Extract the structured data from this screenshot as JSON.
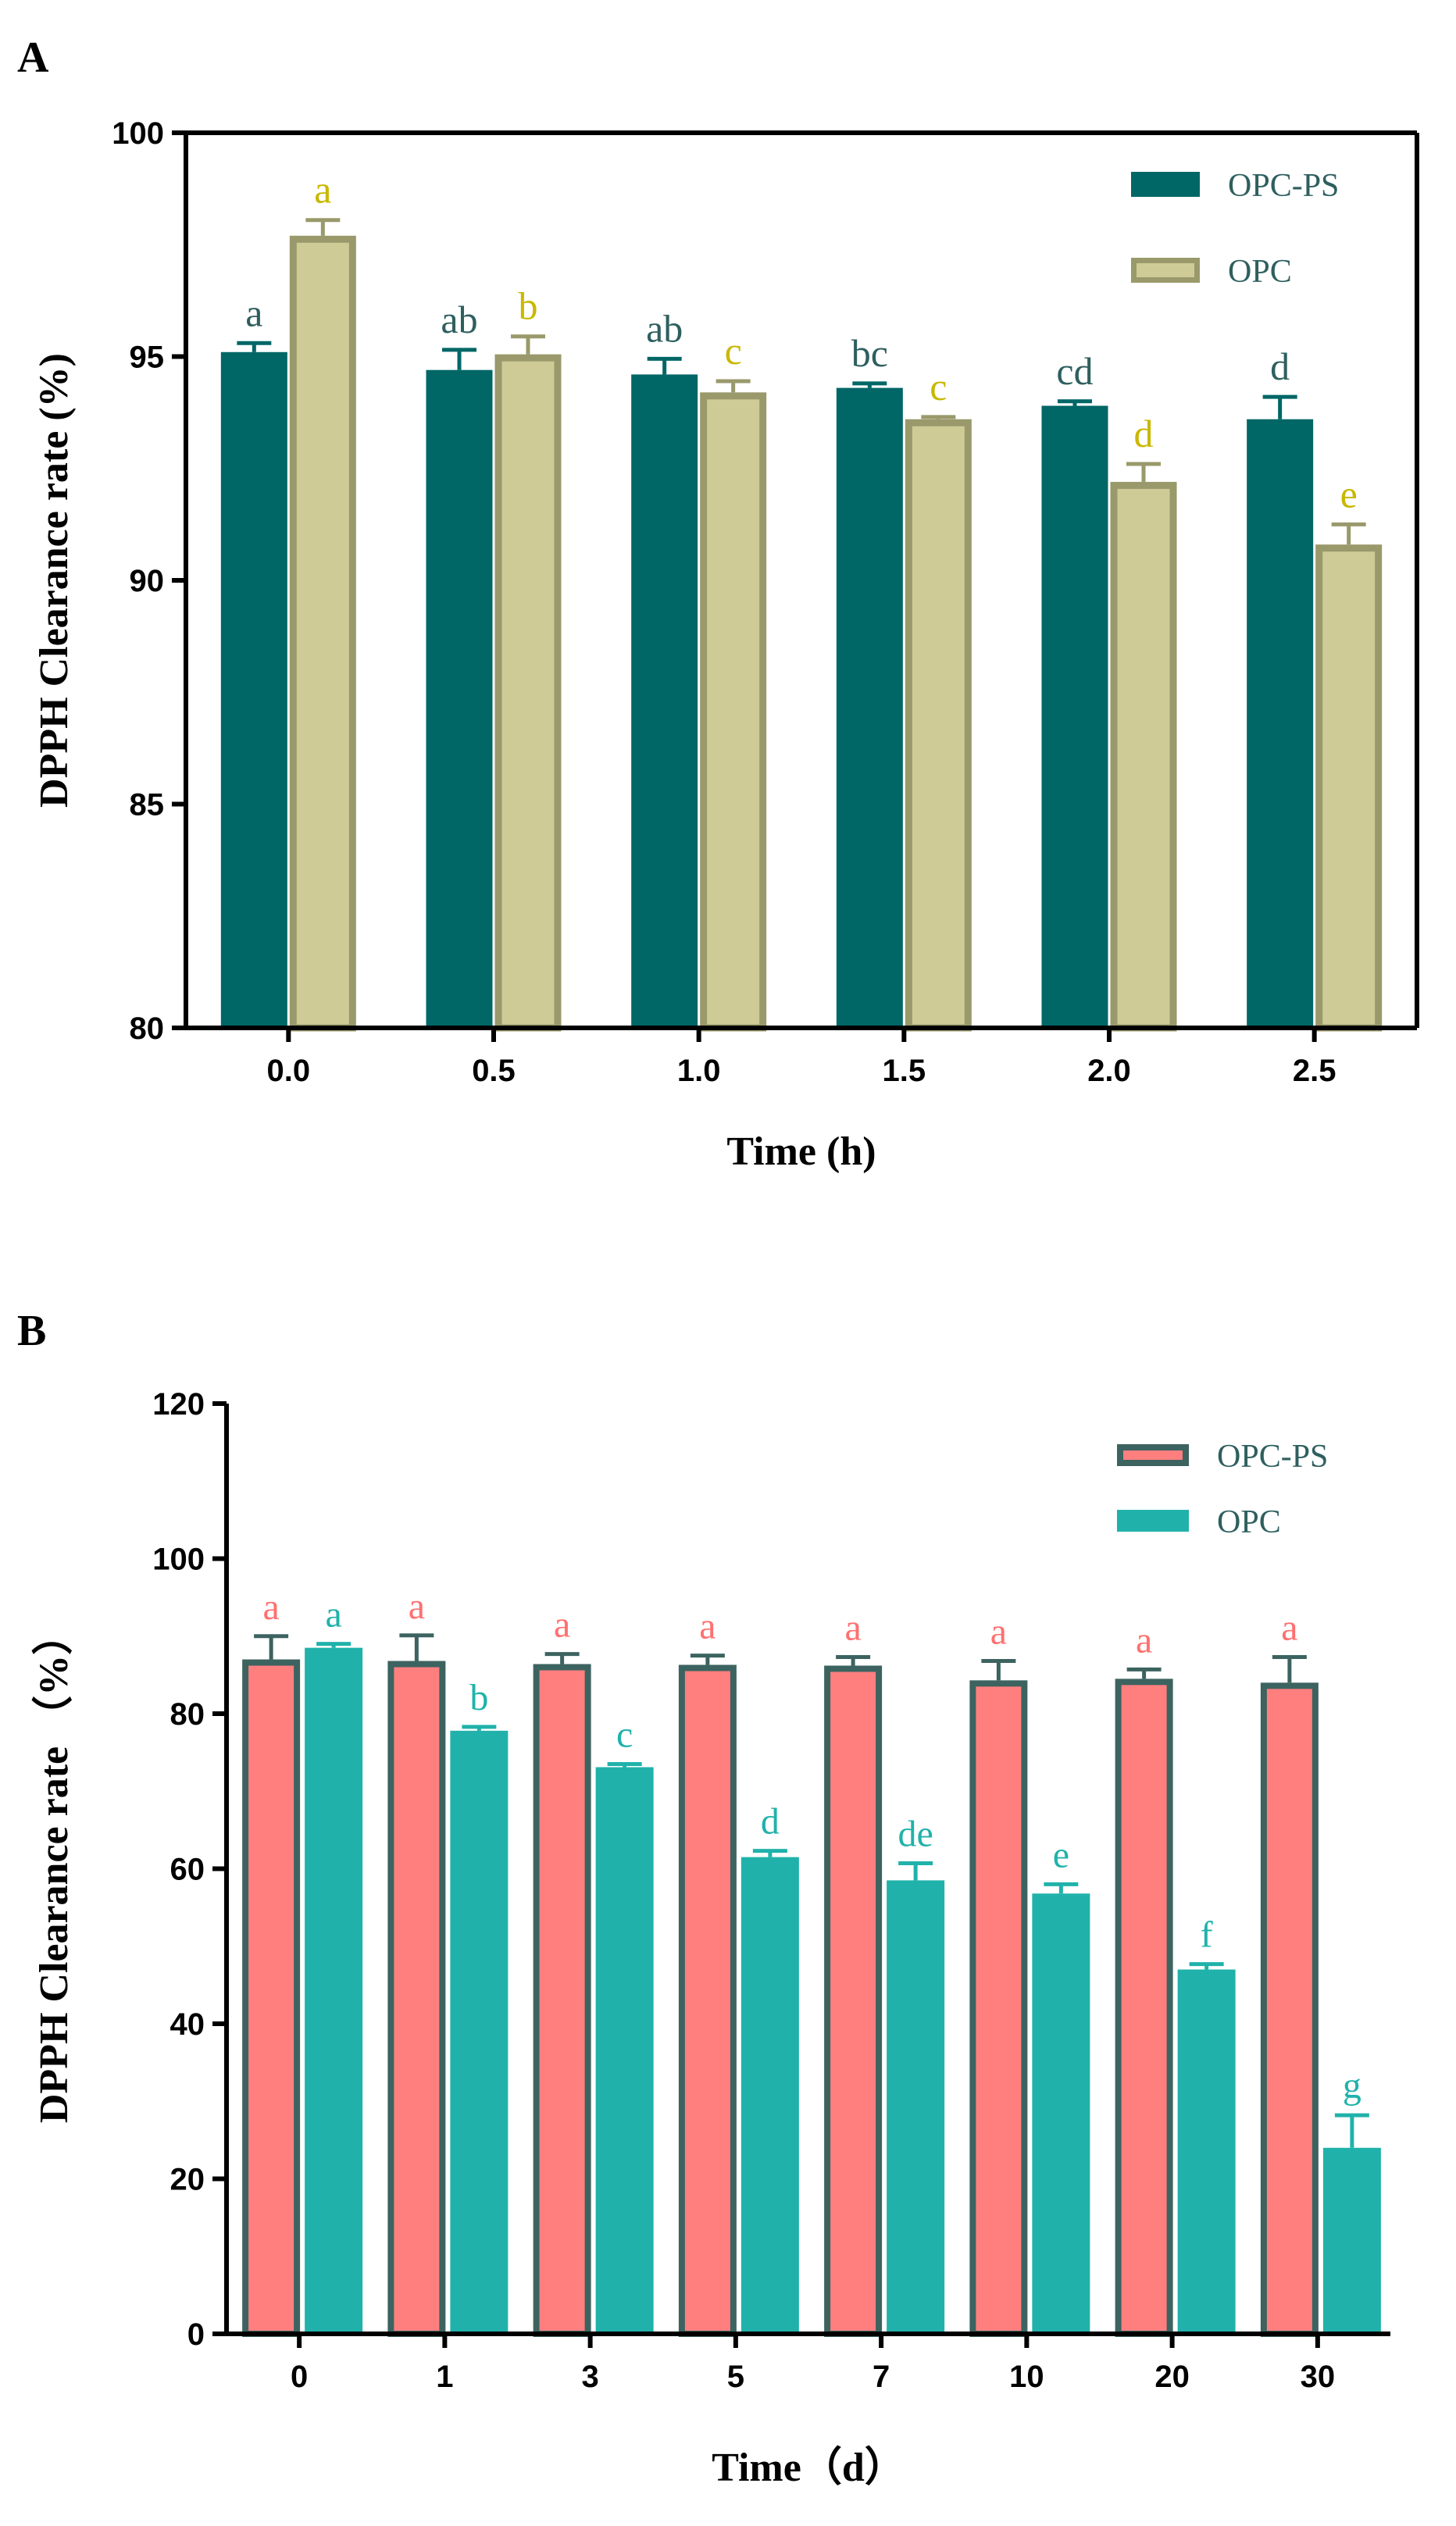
{
  "chart_data": [
    {
      "type": "bar",
      "panel_label": "A",
      "xlabel": "Time (h)",
      "ylabel": "DPPH Clearance rate (%)",
      "ylim": [
        80,
        100
      ],
      "yticks": [
        "80",
        "85",
        "90",
        "95",
        "100"
      ],
      "categories": [
        "0.0",
        "0.5",
        "1.0",
        "1.5",
        "2.0",
        "2.5"
      ],
      "legend_position": "top-right",
      "series": [
        {
          "name": "OPC-PS",
          "fill": "#006666",
          "edge": "#006666",
          "letter_color": "#2f5f5f",
          "values": [
            95.1,
            94.7,
            94.6,
            94.3,
            93.9,
            93.6
          ],
          "errors": [
            0.2,
            0.45,
            0.35,
            0.1,
            0.1,
            0.5
          ],
          "letters": [
            "a",
            "ab",
            "ab",
            "bc",
            "cd",
            "d"
          ]
        },
        {
          "name": "OPC",
          "fill": "#cfcb97",
          "edge": "#99996b",
          "letter_color": "#c9b800",
          "values": [
            97.7,
            95.05,
            94.2,
            93.6,
            92.2,
            90.8
          ],
          "errors": [
            0.35,
            0.4,
            0.25,
            0.05,
            0.4,
            0.45
          ],
          "letters": [
            "a",
            "b",
            "c",
            "c",
            "d",
            "e"
          ]
        }
      ]
    },
    {
      "type": "bar",
      "panel_label": "B",
      "xlabel": "Time（d）",
      "ylabel": "DPPH Clearance rate （%）",
      "ylim": [
        0,
        120
      ],
      "yticks": [
        "0",
        "20",
        "40",
        "60",
        "80",
        "100",
        "120"
      ],
      "categories": [
        "0",
        "1",
        "3",
        "5",
        "7",
        "10",
        "20",
        "30"
      ],
      "legend_position": "top-right",
      "series": [
        {
          "name": "OPC-PS",
          "fill": "#ff7f7f",
          "edge": "#3c6360",
          "letter_color": "#ff7070",
          "values": [
            87,
            86.8,
            86.4,
            86.3,
            86.2,
            84.3,
            84.5,
            84.0
          ],
          "errors": [
            3.0,
            3.3,
            1.3,
            1.2,
            1.1,
            2.5,
            1.2,
            3.3
          ],
          "letters": [
            "a",
            "a",
            "a",
            "a",
            "a",
            "a",
            "a",
            "a"
          ]
        },
        {
          "name": "OPC",
          "fill": "#20b2aa",
          "edge": "#20b2aa",
          "letter_color": "#20b2aa",
          "values": [
            88.5,
            77.8,
            73.1,
            61.5,
            58.5,
            56.8,
            47.0,
            24.0
          ],
          "errors": [
            0.5,
            0.5,
            0.4,
            0.8,
            2.2,
            1.2,
            0.7,
            4.2
          ],
          "letters": [
            "a",
            "b",
            "c",
            "d",
            "de",
            "e",
            "f",
            "g"
          ]
        }
      ]
    }
  ]
}
